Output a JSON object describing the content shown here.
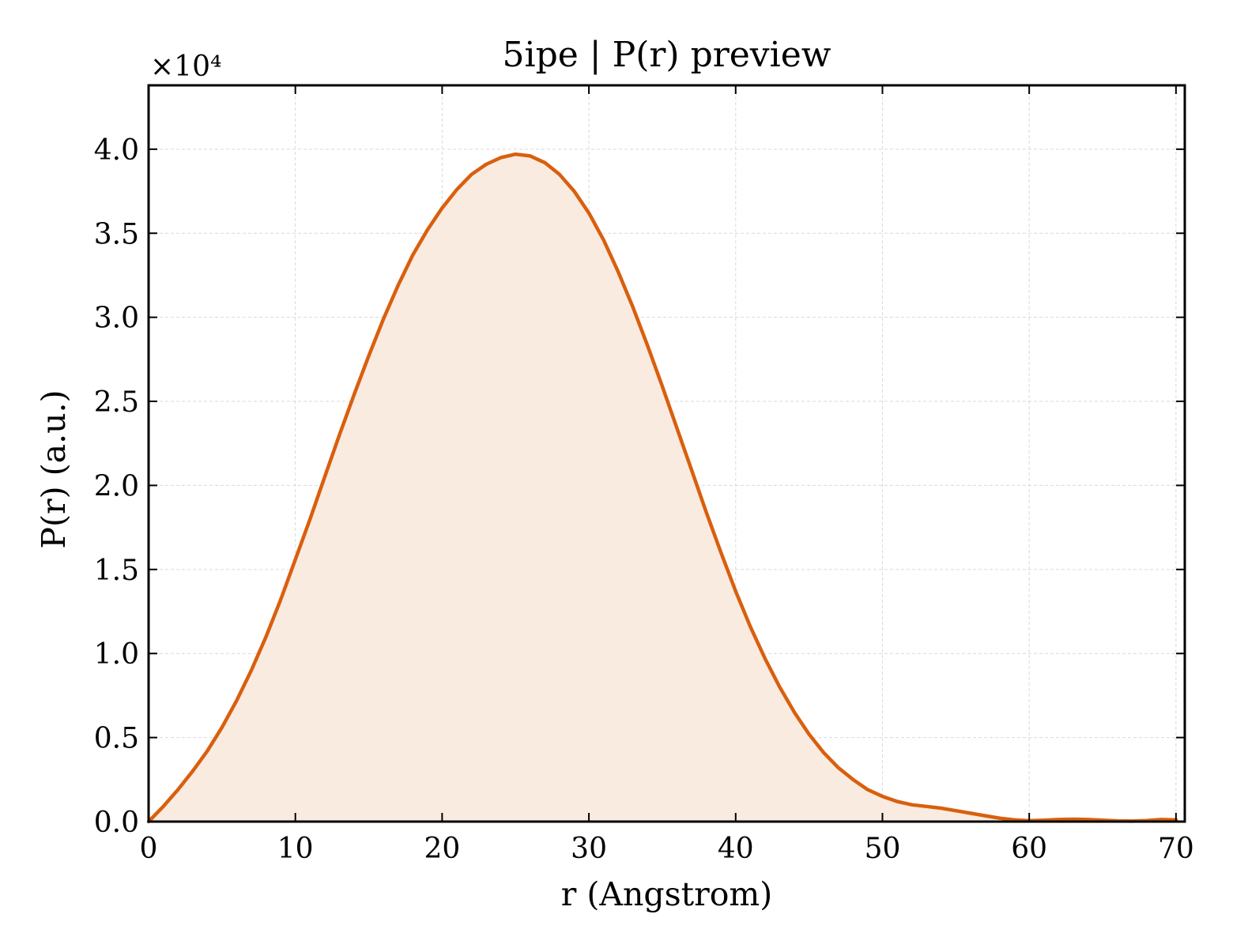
{
  "chart_data": {
    "type": "area",
    "title": "5ipe | P(r) preview",
    "xlabel": "r (Angstrom)",
    "ylabel": "P(r) (a.u.)",
    "y_scale_label": "×10⁴",
    "y_multiplier": 10000,
    "xlim": [
      0,
      70.6
    ],
    "ylim": [
      0,
      4.38
    ],
    "xticks": [
      0,
      10,
      20,
      30,
      40,
      50,
      60,
      70
    ],
    "xtick_labels": [
      "0",
      "10",
      "20",
      "30",
      "40",
      "50",
      "60",
      "70"
    ],
    "yticks": [
      0,
      0.5,
      1.0,
      1.5,
      2.0,
      2.5,
      3.0,
      3.5,
      4.0
    ],
    "ytick_labels": [
      "0.0",
      "0.5",
      "1.0",
      "1.5",
      "2.0",
      "2.5",
      "3.0",
      "3.5",
      "4.0"
    ],
    "grid": true,
    "legend": "none",
    "colors": {
      "line": "#d95f0e",
      "fill": "#f9ebe0",
      "grid": "#d9d9d9",
      "axes": "#000000"
    },
    "series": [
      {
        "x": [
          0,
          1,
          2,
          3,
          4,
          5,
          6,
          7,
          8,
          9,
          10,
          11,
          12,
          13,
          14,
          15,
          16,
          17,
          18,
          19,
          20,
          21,
          22,
          23,
          24,
          25,
          26,
          27,
          28,
          29,
          30,
          31,
          32,
          33,
          34,
          35,
          36,
          37,
          38,
          39,
          40,
          41,
          42,
          43,
          44,
          45,
          46,
          47,
          48,
          49,
          50,
          51,
          52,
          53,
          54,
          55,
          56,
          57,
          58,
          59,
          60,
          61,
          62,
          63,
          64,
          65,
          66,
          67,
          68,
          69,
          70
        ],
        "values": [
          0.0,
          0.09,
          0.19,
          0.3,
          0.42,
          0.56,
          0.72,
          0.9,
          1.1,
          1.32,
          1.56,
          1.8,
          2.05,
          2.3,
          2.54,
          2.77,
          2.99,
          3.19,
          3.37,
          3.52,
          3.65,
          3.76,
          3.85,
          3.91,
          3.95,
          3.97,
          3.96,
          3.92,
          3.85,
          3.75,
          3.62,
          3.46,
          3.27,
          3.06,
          2.83,
          2.59,
          2.34,
          2.09,
          1.84,
          1.6,
          1.37,
          1.16,
          0.97,
          0.8,
          0.65,
          0.52,
          0.41,
          0.32,
          0.25,
          0.19,
          0.15,
          0.12,
          0.1,
          0.09,
          0.08,
          0.065,
          0.05,
          0.035,
          0.02,
          0.01,
          0.005,
          0.008,
          0.012,
          0.014,
          0.012,
          0.008,
          0.004,
          0.003,
          0.006,
          0.012,
          0.01
        ]
      }
    ]
  }
}
